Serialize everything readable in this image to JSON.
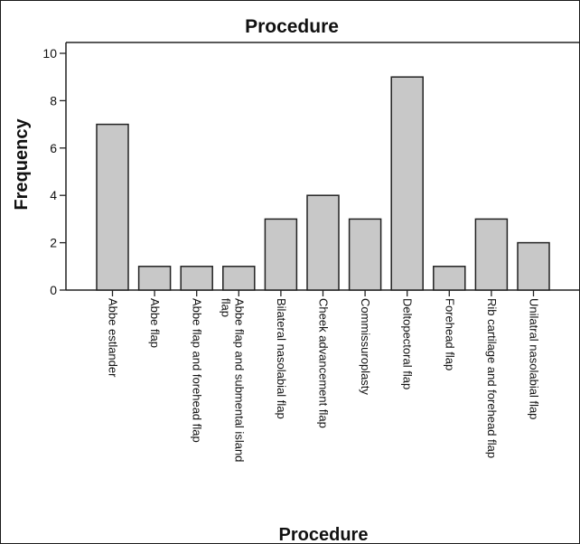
{
  "chart_data": {
    "type": "bar",
    "title": "Procedure",
    "xlabel": "Procedure",
    "ylabel": "Frequency",
    "categories": [
      "Abbe estlander",
      "Abbe flap",
      "Abbe flap and forehead flap",
      "Abbe flap and submental island flap",
      "Bilateral nasolabial flap",
      "Cheek advancement flap",
      "Commissuroplasty",
      "Deltopectoral flap",
      "Forehead flap",
      "Rib cartilage and forehead flap",
      "Unilatral nasolabial flap"
    ],
    "values": [
      7,
      1,
      1,
      1,
      3,
      4,
      3,
      9,
      1,
      3,
      2
    ],
    "ylim": [
      0,
      10
    ],
    "yticks": [
      0,
      2,
      4,
      6,
      8,
      10
    ],
    "grid": false,
    "legend": "none",
    "colors": {
      "bar_fill": "#c8c8c8",
      "bar_stroke": "#222222",
      "axis": "#222222"
    }
  }
}
